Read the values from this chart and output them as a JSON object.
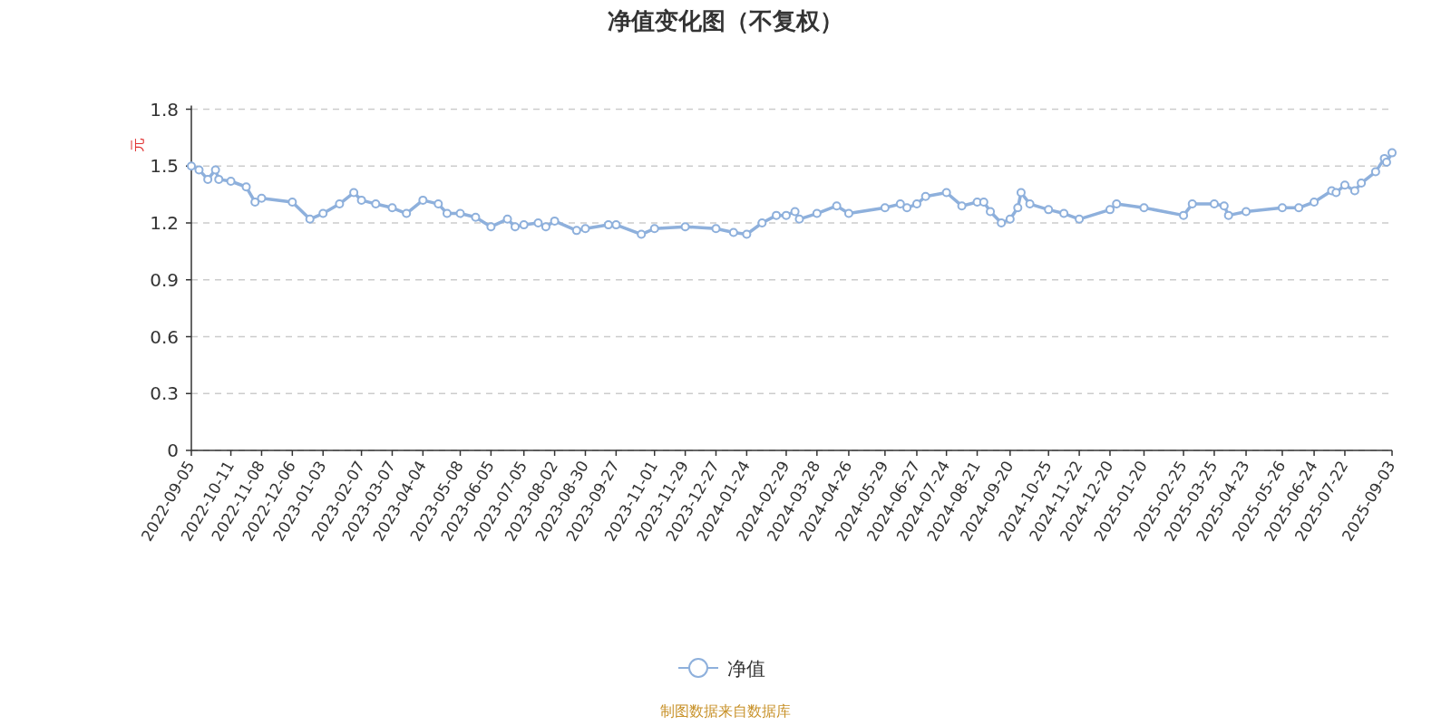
{
  "chart_data": {
    "type": "line",
    "title": "净值变化图（不复权）",
    "ylabel": "元",
    "annotations": [
      "制图数据来自数据库"
    ],
    "x": [
      "2022-09-05",
      "2022-09-12",
      "2022-09-20",
      "2022-09-27",
      "2022-09-30",
      "2022-10-11",
      "2022-10-25",
      "2022-11-02",
      "2022-11-08",
      "2022-12-06",
      "2022-12-22",
      "2023-01-03",
      "2023-01-18",
      "2023-01-31",
      "2023-02-07",
      "2023-02-20",
      "2023-03-07",
      "2023-03-20",
      "2023-04-04",
      "2023-04-18",
      "2023-04-26",
      "2023-05-08",
      "2023-05-22",
      "2023-06-05",
      "2023-06-20",
      "2023-06-27",
      "2023-07-05",
      "2023-07-18",
      "2023-07-25",
      "2023-08-02",
      "2023-08-22",
      "2023-08-30",
      "2023-09-20",
      "2023-09-27",
      "2023-10-20",
      "2023-11-01",
      "2023-11-29",
      "2023-12-27",
      "2024-01-12",
      "2024-01-24",
      "2024-02-07",
      "2024-02-20",
      "2024-02-29",
      "2024-03-08",
      "2024-03-12",
      "2024-03-28",
      "2024-04-15",
      "2024-04-26",
      "2024-05-29",
      "2024-06-12",
      "2024-06-18",
      "2024-06-27",
      "2024-07-05",
      "2024-07-24",
      "2024-08-07",
      "2024-08-21",
      "2024-08-27",
      "2024-09-02",
      "2024-09-12",
      "2024-09-20",
      "2024-09-27",
      "2024-09-30",
      "2024-10-08",
      "2024-10-25",
      "2024-11-08",
      "2024-11-22",
      "2024-12-20",
      "2024-12-26",
      "2025-01-20",
      "2025-02-25",
      "2025-03-05",
      "2025-03-25",
      "2025-04-03",
      "2025-04-07",
      "2025-04-23",
      "2025-05-26",
      "2025-06-10",
      "2025-06-24",
      "2025-07-10",
      "2025-07-14",
      "2025-07-22",
      "2025-07-31",
      "2025-08-06",
      "2025-08-19",
      "2025-08-27",
      "2025-08-29",
      "2025-09-03"
    ],
    "series": [
      {
        "name": "净值",
        "color": "#8eb0dc",
        "values": [
          1.5,
          1.48,
          1.43,
          1.48,
          1.43,
          1.42,
          1.39,
          1.31,
          1.33,
          1.31,
          1.22,
          1.25,
          1.3,
          1.36,
          1.32,
          1.3,
          1.28,
          1.25,
          1.32,
          1.3,
          1.25,
          1.25,
          1.23,
          1.18,
          1.22,
          1.18,
          1.19,
          1.2,
          1.18,
          1.21,
          1.16,
          1.17,
          1.19,
          1.19,
          1.14,
          1.17,
          1.18,
          1.17,
          1.15,
          1.14,
          1.2,
          1.24,
          1.24,
          1.26,
          1.22,
          1.25,
          1.29,
          1.25,
          1.28,
          1.3,
          1.28,
          1.3,
          1.34,
          1.36,
          1.29,
          1.31,
          1.31,
          1.26,
          1.2,
          1.22,
          1.28,
          1.36,
          1.3,
          1.27,
          1.25,
          1.22,
          1.27,
          1.3,
          1.28,
          1.24,
          1.3,
          1.3,
          1.29,
          1.24,
          1.26,
          1.28,
          1.28,
          1.31,
          1.37,
          1.36,
          1.4,
          1.37,
          1.41,
          1.47,
          1.54,
          1.52,
          1.57
        ]
      }
    ],
    "xlim": [
      "2022-09-05",
      "2025-09-03"
    ],
    "xticks": [
      "2022-09-05",
      "2022-10-11",
      "2022-11-08",
      "2022-12-06",
      "2023-01-03",
      "2023-02-07",
      "2023-03-07",
      "2023-04-04",
      "2023-05-08",
      "2023-06-05",
      "2023-07-05",
      "2023-08-02",
      "2023-08-30",
      "2023-09-27",
      "2023-11-01",
      "2023-11-29",
      "2023-12-27",
      "2024-01-24",
      "2024-02-29",
      "2024-03-28",
      "2024-04-26",
      "2024-05-29",
      "2024-06-27",
      "2024-07-24",
      "2024-08-21",
      "2024-09-20",
      "2024-10-25",
      "2024-11-22",
      "2024-12-20",
      "2025-01-20",
      "2025-02-25",
      "2025-03-25",
      "2025-04-23",
      "2025-05-26",
      "2025-06-24",
      "2025-07-22",
      "2025-09-03"
    ],
    "ylim": [
      0,
      1.8
    ],
    "yticks": [
      0,
      0.3,
      0.6,
      0.9,
      1.2,
      1.5,
      1.8
    ],
    "grid": "y",
    "legend": "bottom",
    "marker": "circle",
    "line_style": "solid"
  }
}
